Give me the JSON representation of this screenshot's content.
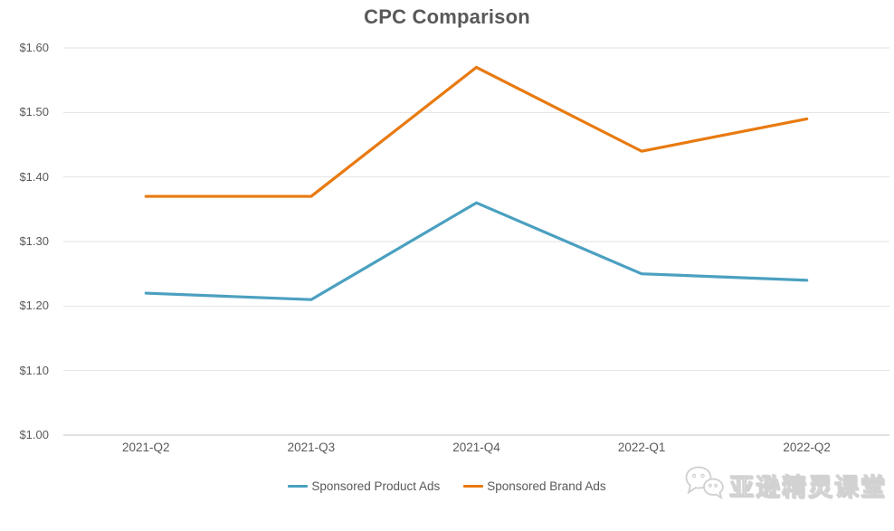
{
  "chart_data": {
    "type": "line",
    "title": "CPC Comparison",
    "xlabel": "",
    "ylabel": "",
    "categories": [
      "2021-Q2",
      "2021-Q3",
      "2021-Q4",
      "2022-Q1",
      "2022-Q2"
    ],
    "series": [
      {
        "name": "Sponsored Product Ads",
        "color": "#4BA0C0",
        "values": [
          1.22,
          1.21,
          1.36,
          1.25,
          1.24
        ]
      },
      {
        "name": "Sponsored Brand Ads",
        "color": "#E87A10",
        "values": [
          1.37,
          1.37,
          1.57,
          1.44,
          1.49
        ]
      }
    ],
    "y_axis": {
      "min": 1.0,
      "max": 1.6,
      "step": 0.1,
      "ticks": [
        {
          "label": "$1.60",
          "value": 1.6
        },
        {
          "label": "$1.50",
          "value": 1.5
        },
        {
          "label": "$1.40",
          "value": 1.4
        },
        {
          "label": "$1.30",
          "value": 1.3
        },
        {
          "label": "$1.20",
          "value": 1.2
        },
        {
          "label": "$1.10",
          "value": 1.1
        },
        {
          "label": "$1.00",
          "value": 1.0
        }
      ]
    },
    "ylim": [
      1.0,
      1.6
    ],
    "grid": true,
    "legend_position": "bottom"
  },
  "colors": {
    "gridline": "#E2E2E2",
    "axis_line": "#C6C6C6",
    "text": "#595959",
    "background": "#FFFFFF"
  },
  "watermark": {
    "text": "亚逊精灵课堂",
    "icon": "wechat-icon"
  }
}
